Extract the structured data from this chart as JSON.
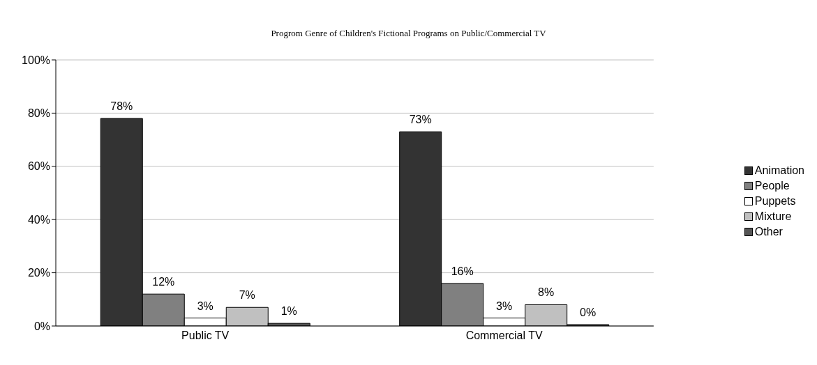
{
  "chart_data": {
    "type": "bar",
    "title": "Progrom Genre of Children's Fictional Programs on Public/Commercial TV",
    "categories": [
      "Public TV",
      "Commercial TV"
    ],
    "series": [
      {
        "name": "Animation",
        "color": "#333333",
        "values": [
          78,
          73
        ],
        "value_labels": [
          "78%",
          "73%"
        ]
      },
      {
        "name": "People",
        "color": "#808080",
        "values": [
          12,
          16
        ],
        "value_labels": [
          "12%",
          "16%"
        ]
      },
      {
        "name": "Puppets",
        "color": "#ffffff",
        "values": [
          3,
          3
        ],
        "value_labels": [
          "3%",
          "3%"
        ]
      },
      {
        "name": "Mixture",
        "color": "#c0c0c0",
        "values": [
          7,
          8
        ],
        "value_labels": [
          "7%",
          "8%"
        ]
      },
      {
        "name": "Other",
        "color": "#555555",
        "values": [
          1,
          0
        ],
        "value_labels": [
          "1%",
          "0%"
        ]
      }
    ],
    "ylim": [
      0,
      100
    ],
    "yticks": [
      {
        "value": 0,
        "label": "0%"
      },
      {
        "value": 20,
        "label": "20%"
      },
      {
        "value": 40,
        "label": "40%"
      },
      {
        "value": 60,
        "label": "60%"
      },
      {
        "value": 80,
        "label": "80%"
      },
      {
        "value": 100,
        "label": "100%"
      }
    ],
    "grid": "y",
    "legend": "right"
  }
}
